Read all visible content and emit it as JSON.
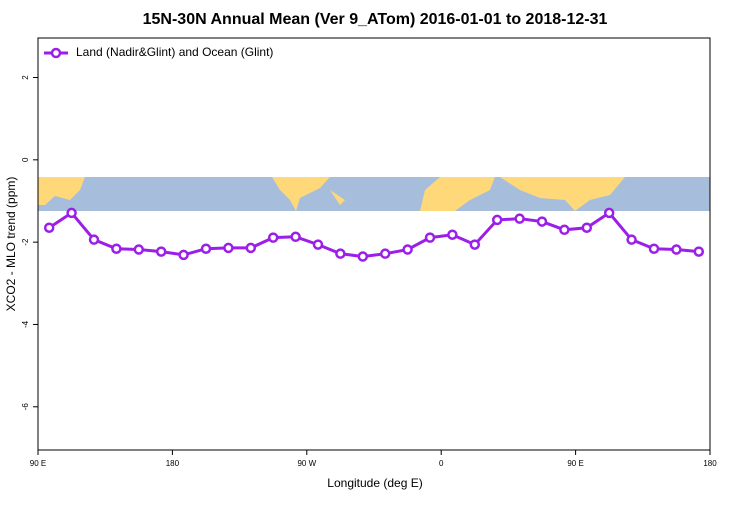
{
  "chart_data": {
    "type": "line",
    "title": "15N-30N Annual Mean (Ver 9_ATom)   2016-01-01 to 2018-12-31",
    "x_label": "Longitude (deg E)",
    "y_label": "XCO2 - MLO trend (ppm)",
    "x": [
      97.5,
      112.5,
      127.5,
      142.5,
      157.5,
      172.5,
      187.5,
      202.5,
      217.5,
      232.5,
      247.5,
      262.5,
      277.5,
      292.5,
      307.5,
      322.5,
      337.5,
      352.5,
      367.5,
      382.5,
      397.5,
      412.5,
      427.5,
      442.5,
      457.5,
      472.5,
      487.5,
      502.5,
      517.5,
      532.5
    ],
    "series": [
      {
        "name": "Land (Nadir&Glint) and Ocean (Glint)",
        "color": "#9b1fe8",
        "values": [
          -1.65,
          -1.29,
          -1.94,
          -2.16,
          -2.18,
          -2.23,
          -2.31,
          -2.16,
          -2.14,
          -2.14,
          -1.89,
          -1.87,
          -2.06,
          -2.28,
          -2.35,
          -2.28,
          -2.18,
          -1.89,
          -1.82,
          -2.06,
          -1.46,
          -1.43,
          -1.5,
          -1.7,
          -1.65,
          -1.29,
          -1.94,
          -2.16,
          -2.18,
          -2.23
        ]
      }
    ],
    "xlim": [
      90,
      540
    ],
    "xticks": [
      {
        "value": 90,
        "label": "90 E"
      },
      180,
      {
        "value": 270,
        "label": "90 W"
      },
      {
        "value": 360,
        "label": "0"
      },
      {
        "value": 450,
        "label": "90 E"
      },
      {
        "value": 540,
        "label": "180"
      }
    ],
    "ylim": [
      -7.05,
      2.96
    ],
    "yticks": [
      2,
      0,
      -2,
      -4,
      -6
    ],
    "legend": "top-left"
  }
}
